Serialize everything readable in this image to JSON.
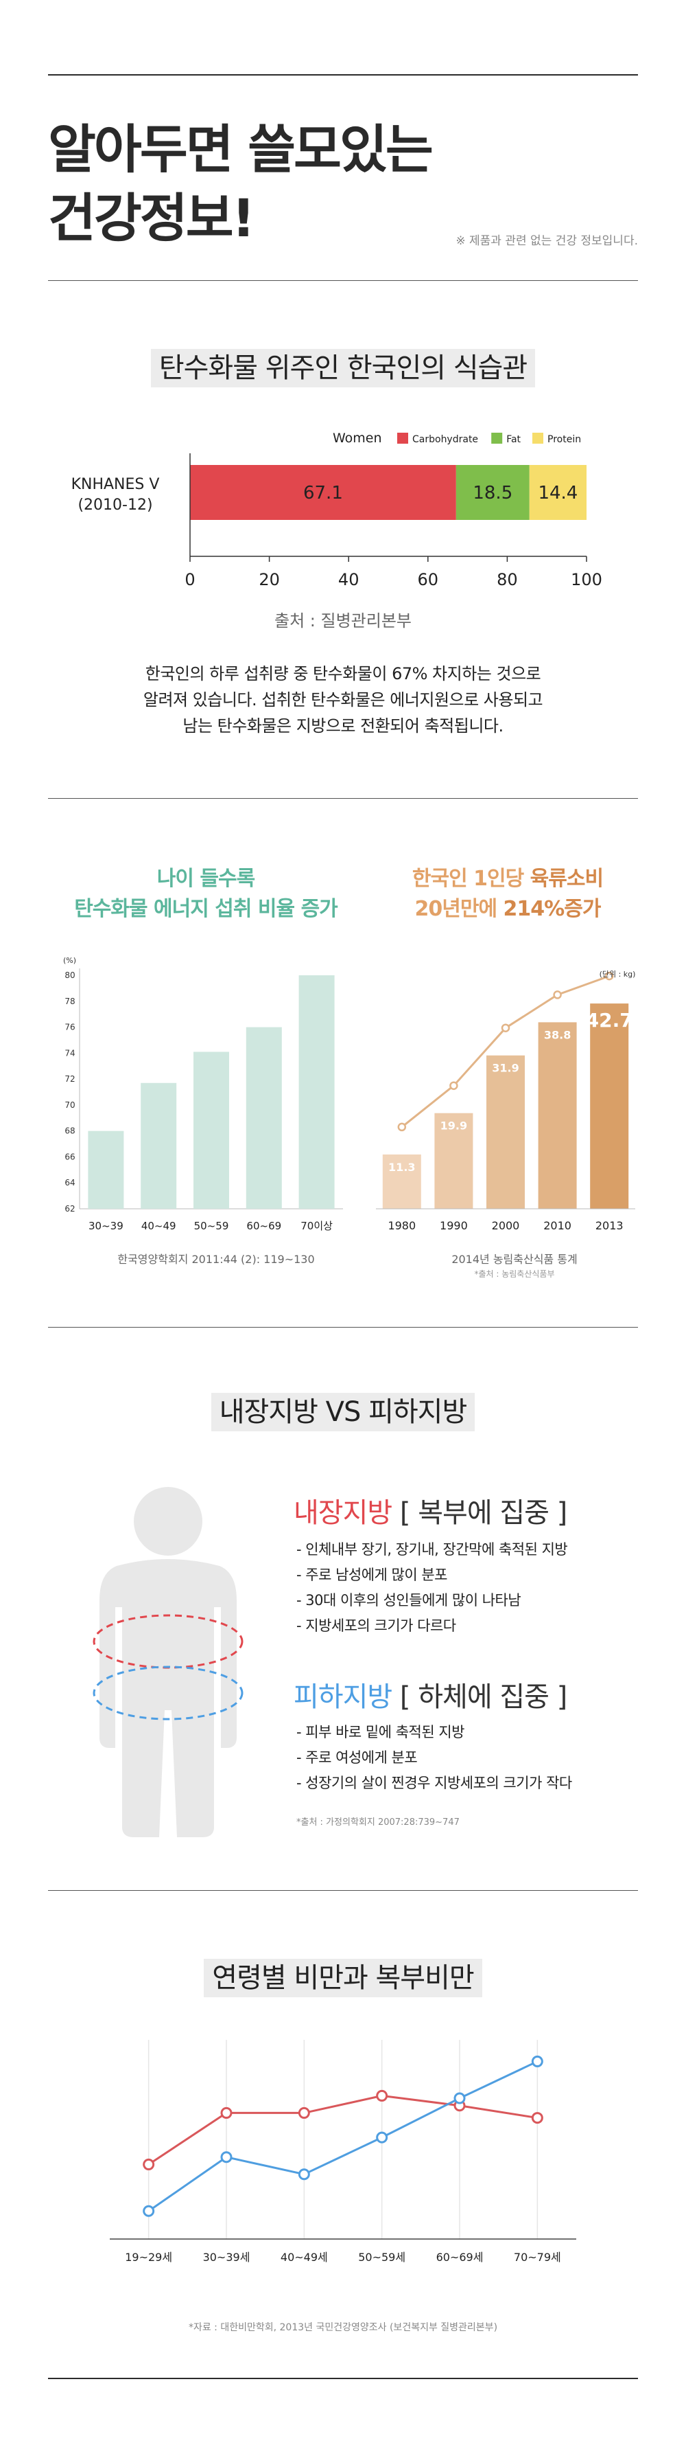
{
  "header": {
    "title_line1": "알아두면 쓸모있는",
    "title_line2": "건강정보!",
    "disclaimer": "※ 제품과 관련 없는 건강 정보입니다."
  },
  "section1": {
    "title": "탄수화물 위주인 한국인의 식습관",
    "source": "출처 : 질병관리본부",
    "body_line1": "한국인의 하루 섭취량 중 탄수화물이 67% 차지하는 것으로",
    "body_line2": "알려져 있습니다.  섭취한 탄수화물은 에너지원으로 사용되고",
    "body_line3": "남는 탄수화물은 지방으로 전환되어 축적됩니다."
  },
  "section2": {
    "left_head1": "나이 들수록",
    "left_head2": "탄수화물 에너지 섭취 비율 증가",
    "left_caption": "한국영양학회지 2011:44 (2): 119~130",
    "right_head1_a": "한국인 1인당 ",
    "right_head1_b": "육류소비",
    "right_head2_a": "20년만에 ",
    "right_head2_b": "214%증가",
    "right_caption": "2014년 농림축산식품 통계",
    "right_caption_small": "*출처 : 농림축산식품부"
  },
  "section3": {
    "title": "내장지방 VS 피하지방",
    "visceral_title": "내장지방",
    "visceral_sub": " [ 복부에 집중 ]",
    "visceral_points": [
      "- 인체내부 장기, 장기내, 장간막에 축적된 지방",
      "- 주로 남성에게 많이 분포",
      "- 30대 이후의 성인들에게 많이 나타남",
      "- 지방세포의 크기가 다르다"
    ],
    "subq_title": "피하지방",
    "subq_sub": " [ 하체에 집중 ]",
    "subq_points": [
      "- 피부 바로 밑에 축적된 지방",
      "- 주로 여성에게 분포",
      "- 성장기의 살이 찐경우 지방세포의 크기가 작다"
    ],
    "source": "*출처 : 가정의학회지 2007:28:739~747"
  },
  "section4": {
    "title": "연령별 비만과 복부비만",
    "source": "*자료 : 대한비만학회, 2013년 국민건강영양조사 (보건복지부 질병관리본부)"
  },
  "chart_data": [
    {
      "type": "bar",
      "orientation": "horizontal-stacked",
      "legend_title": "Women",
      "categories": [
        "KNHANES V (2010-12)"
      ],
      "series": [
        {
          "name": "Carbohydrate",
          "values": [
            67.1
          ],
          "color": "#e1474d"
        },
        {
          "name": "Fat",
          "values": [
            18.5
          ],
          "color": "#7fbe4b"
        },
        {
          "name": "Protein",
          "values": [
            14.4
          ],
          "color": "#f6dd6b"
        }
      ],
      "xlim": [
        0,
        100
      ],
      "xticks": [
        0,
        20,
        40,
        60,
        80,
        100
      ],
      "legend": "top-right"
    },
    {
      "type": "bar",
      "categories": [
        "30~39",
        "40~49",
        "50~59",
        "60~69",
        "70이상"
      ],
      "values": [
        68,
        71.7,
        74.1,
        76,
        80
      ],
      "ylim": [
        62,
        80
      ],
      "yticks": [
        62,
        64,
        66,
        68,
        70,
        72,
        74,
        76,
        78,
        80
      ],
      "unit": "(%)",
      "color": "#cfe7df"
    },
    {
      "type": "bar",
      "categories": [
        "1980",
        "1990",
        "2000",
        "2010",
        "2013"
      ],
      "values": [
        11.3,
        19.9,
        31.9,
        38.8,
        42.7
      ],
      "value_labels": [
        "11.3",
        "19.9",
        "31.9",
        "38.8",
        "42.7"
      ],
      "line_overlay": true,
      "unit": "(단위 : kg)",
      "colors": [
        "#f1d4b9",
        "#eccaa9",
        "#e6bf97",
        "#e2b487",
        "#d99f67"
      ]
    },
    {
      "type": "line",
      "categories": [
        "19~29세",
        "30~39세",
        "40~49세",
        "50~59세",
        "60~69세",
        "70~79세"
      ],
      "series": [
        {
          "values": [
            22,
            43,
            43,
            50,
            46,
            41
          ],
          "color": "#d9575a"
        },
        {
          "values": [
            3,
            25,
            18,
            33,
            49,
            64
          ],
          "color": "#4f9ee0"
        }
      ],
      "ylim": [
        0,
        70
      ]
    }
  ]
}
